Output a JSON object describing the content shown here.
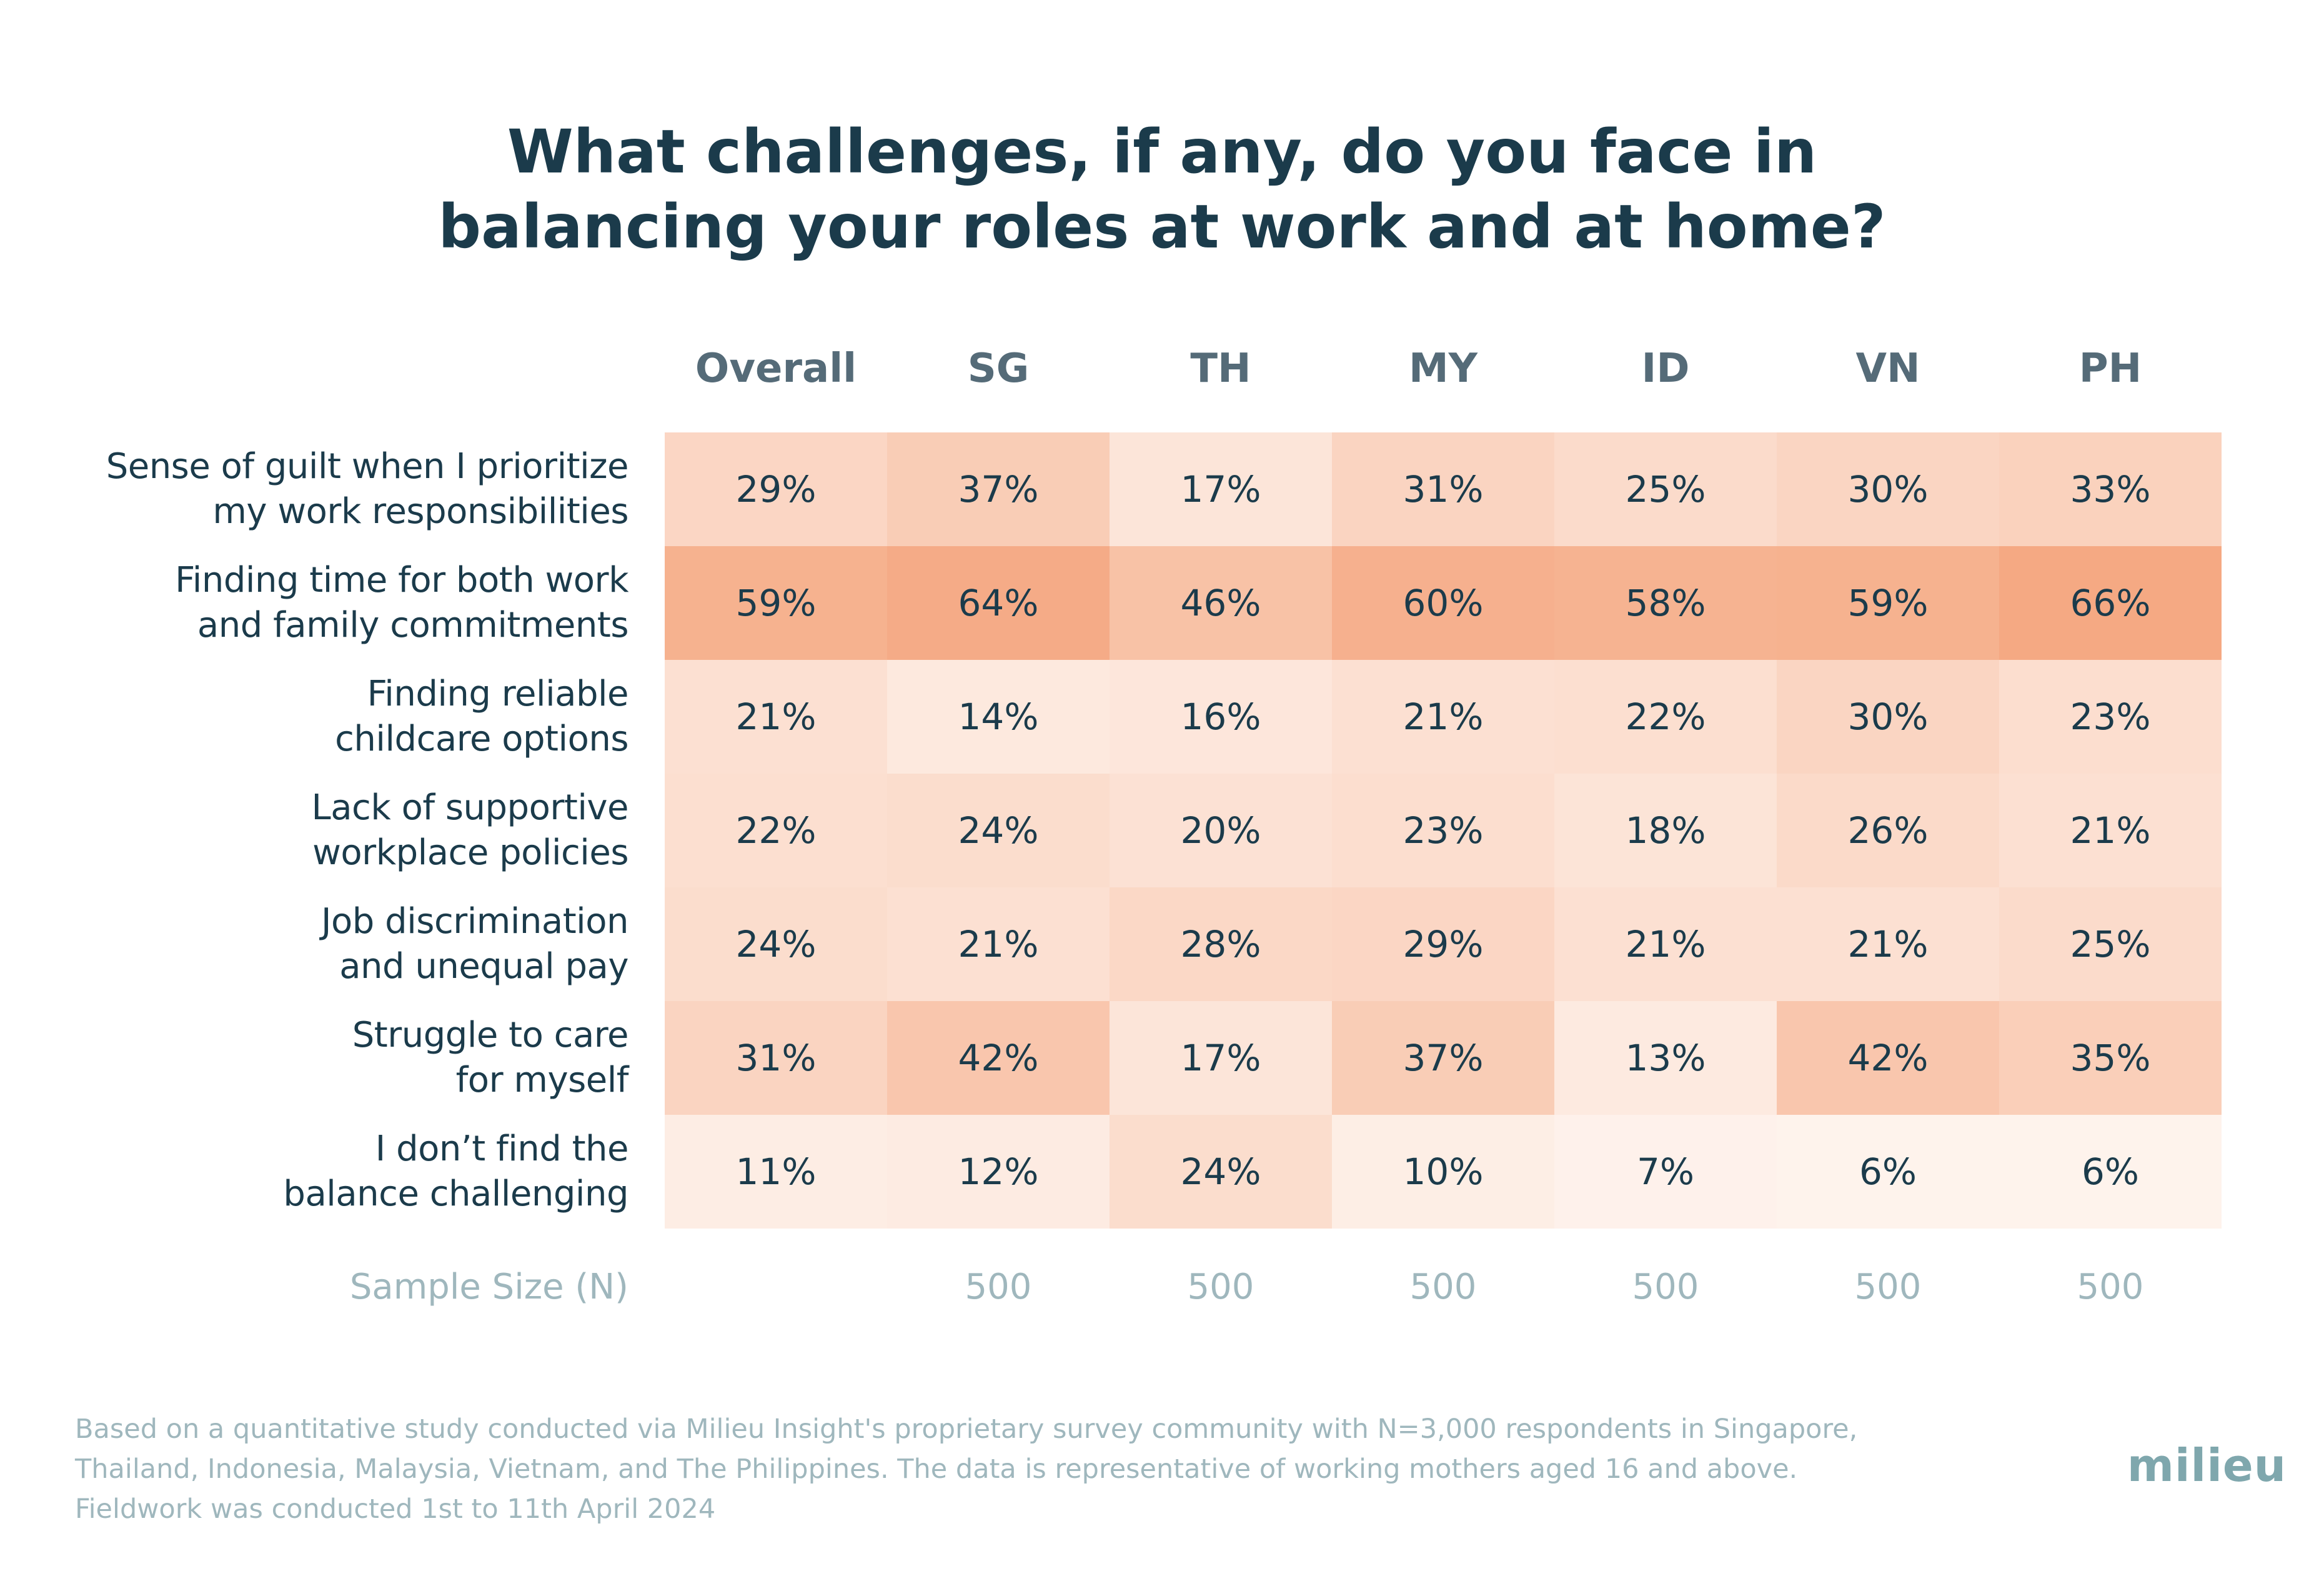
{
  "title": {
    "line1": "What challenges, if any, do you face in",
    "line2": "balancing your roles at work and at home?"
  },
  "columns": [
    "Overall",
    "SG",
    "TH",
    "MY",
    "ID",
    "VN",
    "PH"
  ],
  "rows": [
    {
      "label_lines": [
        "Sense of guilt when I prioritize",
        "my work responsibilities"
      ],
      "values": [
        "29%",
        "37%",
        "17%",
        "31%",
        "25%",
        "30%",
        "33%"
      ]
    },
    {
      "label_lines": [
        "Finding time for both work",
        "and family commitments"
      ],
      "values": [
        "59%",
        "64%",
        "46%",
        "60%",
        "58%",
        "59%",
        "66%"
      ]
    },
    {
      "label_lines": [
        "Finding reliable",
        "childcare options"
      ],
      "values": [
        "21%",
        "14%",
        "16%",
        "21%",
        "22%",
        "30%",
        "23%"
      ]
    },
    {
      "label_lines": [
        "Lack of supportive",
        "workplace policies"
      ],
      "values": [
        "22%",
        "24%",
        "20%",
        "23%",
        "18%",
        "26%",
        "21%"
      ]
    },
    {
      "label_lines": [
        "Job discrimination",
        "and unequal pay"
      ],
      "values": [
        "24%",
        "21%",
        "28%",
        "29%",
        "21%",
        "21%",
        "25%"
      ]
    },
    {
      "label_lines": [
        "Struggle to care",
        "for myself"
      ],
      "values": [
        "31%",
        "42%",
        "17%",
        "37%",
        "13%",
        "42%",
        "35%"
      ]
    },
    {
      "label_lines": [
        "I don’t find the",
        "balance challenging"
      ],
      "values": [
        "11%",
        "12%",
        "24%",
        "10%",
        "7%",
        "6%",
        "6%"
      ]
    }
  ],
  "sample_size": {
    "label": "Sample Size (N)",
    "values": [
      "",
      "500",
      "500",
      "500",
      "500",
      "500",
      "500"
    ]
  },
  "footnote": {
    "line1": "Based on a quantitative study conducted via Milieu Insight's proprietary survey community with N=3,000 respondents in Singapore,",
    "line2": "Thailand, Indonesia, Malaysia, Vietnam, and The Philippines. The data is representative of working mothers aged 16 and above.",
    "line3": "Fieldwork was conducted 1st to 11th April 2024"
  },
  "logo_text": "milieu",
  "colors": {
    "heat_low": "#fffaf7",
    "heat_high": "#f5a983",
    "title": "#1b3b4b",
    "header": "#556b78",
    "muted": "#9fb7bd",
    "logo": "#7fa7ad"
  },
  "chart_data": {
    "type": "heatmap",
    "title": "What challenges, if any, do you face in balancing your roles at work and at home?",
    "x_categories": [
      "Overall",
      "SG",
      "TH",
      "MY",
      "ID",
      "VN",
      "PH"
    ],
    "y_categories": [
      "Sense of guilt when I prioritize my work responsibilities",
      "Finding time for both work and family commitments",
      "Finding reliable childcare options",
      "Lack of supportive workplace policies",
      "Job discrimination and unequal pay",
      "Struggle to care for myself",
      "I don’t find the balance challenging"
    ],
    "values": [
      [
        29,
        37,
        17,
        31,
        25,
        30,
        33
      ],
      [
        59,
        64,
        46,
        60,
        58,
        59,
        66
      ],
      [
        21,
        14,
        16,
        21,
        22,
        30,
        23
      ],
      [
        22,
        24,
        20,
        23,
        18,
        26,
        21
      ],
      [
        24,
        21,
        28,
        29,
        21,
        21,
        25
      ],
      [
        31,
        42,
        17,
        37,
        13,
        42,
        35
      ],
      [
        11,
        12,
        24,
        10,
        7,
        6,
        6
      ]
    ],
    "unit": "%",
    "sample_size": [
      null,
      500,
      500,
      500,
      500,
      500,
      500
    ]
  }
}
